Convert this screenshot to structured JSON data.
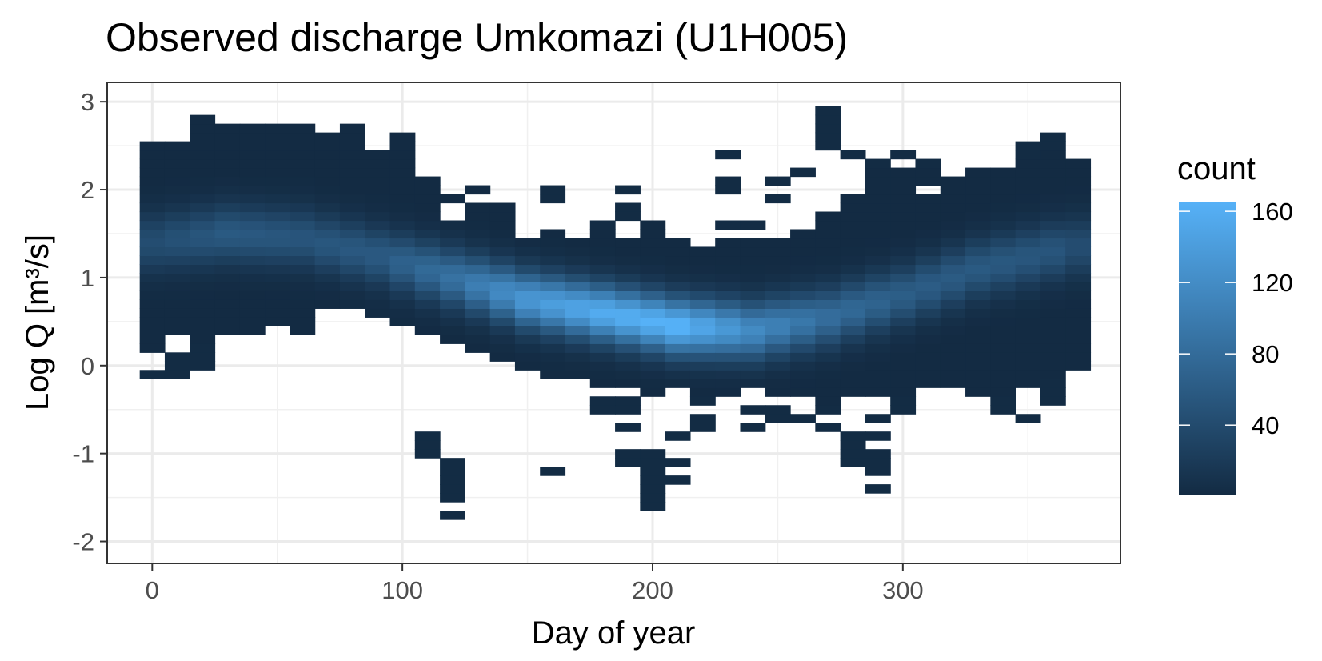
{
  "chart_data": {
    "type": "heatmap",
    "title": "Observed discharge Umkomazi (U1H005)",
    "xlabel": "Day of year",
    "ylabel": "Log Q [m³/s]",
    "xlim": [
      -18,
      387
    ],
    "ylim": [
      -2.25,
      3.22
    ],
    "x_ticks": [
      0,
      100,
      200,
      300
    ],
    "x_tick_labels": [
      "0",
      "100",
      "200",
      "300"
    ],
    "y_ticks": [
      -2,
      -1,
      0,
      1,
      2,
      3
    ],
    "y_tick_labels": [
      "-2",
      "-1",
      "0",
      "1",
      "2",
      "3"
    ],
    "grid": true,
    "bin_width_x": 10,
    "bin_width_y": 0.1,
    "day_min": 0,
    "day_max": 370,
    "fill_aesthetic": "count",
    "legend": {
      "title": "count",
      "position": "right",
      "ticks": [
        40,
        80,
        120,
        160
      ],
      "tick_labels": [
        "40",
        "80",
        "120",
        "160"
      ],
      "range": [
        1,
        165
      ],
      "color_low": "#132B43",
      "color_high": "#56B1F7"
    },
    "ridge": {
      "days": [
        0,
        30,
        60,
        90,
        120,
        150,
        180,
        210,
        240,
        270,
        300,
        330,
        360,
        370
      ],
      "center_log_q": [
        1.4,
        1.5,
        1.45,
        1.25,
        1.0,
        0.75,
        0.6,
        0.45,
        0.4,
        0.55,
        0.8,
        1.1,
        1.3,
        1.35
      ],
      "peak_count": [
        40,
        55,
        50,
        55,
        85,
        130,
        155,
        165,
        115,
        80,
        60,
        55,
        50,
        40
      ]
    },
    "envelope": {
      "days": [
        0,
        10,
        20,
        30,
        40,
        50,
        60,
        70,
        80,
        90,
        100,
        110,
        120,
        130,
        140,
        150,
        160,
        170,
        180,
        190,
        200,
        210,
        220,
        230,
        240,
        250,
        260,
        270,
        280,
        290,
        300,
        310,
        320,
        330,
        340,
        350,
        360,
        370
      ],
      "upper_log_q": [
        2.5,
        2.5,
        2.8,
        2.7,
        2.7,
        2.7,
        2.7,
        2.6,
        2.7,
        2.4,
        2.6,
        2.1,
        1.9,
        2.0,
        1.8,
        1.4,
        1.5,
        1.4,
        1.5,
        1.4,
        1.6,
        1.4,
        1.3,
        1.4,
        1.4,
        1.4,
        1.5,
        1.7,
        1.9,
        2.2,
        2.2,
        2.2,
        2.1,
        2.2,
        2.2,
        2.3,
        2.4,
        2.3
      ],
      "lower_log_q": [
        0.2,
        0.4,
        0.3,
        0.4,
        0.4,
        0.5,
        0.4,
        0.7,
        0.7,
        0.6,
        0.5,
        0.4,
        0.3,
        0.2,
        0.1,
        0.0,
        -0.1,
        -0.1,
        -0.2,
        -0.2,
        -0.3,
        -0.2,
        -0.3,
        -0.3,
        -0.2,
        -0.3,
        -0.3,
        -0.4,
        -0.3,
        -0.3,
        -0.3,
        -0.2,
        -0.2,
        -0.3,
        -0.3,
        -0.2,
        -0.1,
        0.0
      ]
    },
    "extra_bins": [
      {
        "day": 0,
        "log_q": -0.1
      },
      {
        "day": 10,
        "log_q": -0.1
      },
      {
        "day": 10,
        "log_q": 0.0
      },
      {
        "day": 10,
        "log_q": 0.1
      },
      {
        "day": 20,
        "log_q": 0.0
      },
      {
        "day": 20,
        "log_q": 0.1
      },
      {
        "day": 20,
        "log_q": 0.2
      },
      {
        "day": 100,
        "log_q": 2.3
      },
      {
        "day": 100,
        "log_q": 2.4
      },
      {
        "day": 110,
        "log_q": -1.0
      },
      {
        "day": 110,
        "log_q": -0.9
      },
      {
        "day": 110,
        "log_q": -0.8
      },
      {
        "day": 120,
        "log_q": -1.7
      },
      {
        "day": 120,
        "log_q": -1.5
      },
      {
        "day": 120,
        "log_q": -1.4
      },
      {
        "day": 120,
        "log_q": -1.3
      },
      {
        "day": 120,
        "log_q": -1.2
      },
      {
        "day": 120,
        "log_q": -1.1
      },
      {
        "day": 160,
        "log_q": 1.9
      },
      {
        "day": 160,
        "log_q": 2.0
      },
      {
        "day": 160,
        "log_q": 1.5
      },
      {
        "day": 160,
        "log_q": -1.2
      },
      {
        "day": 190,
        "log_q": 2.0
      },
      {
        "day": 190,
        "log_q": 1.8
      },
      {
        "day": 190,
        "log_q": 1.7
      },
      {
        "day": 190,
        "log_q": -0.4
      },
      {
        "day": 190,
        "log_q": -0.5
      },
      {
        "day": 190,
        "log_q": -0.7
      },
      {
        "day": 180,
        "log_q": -0.4
      },
      {
        "day": 180,
        "log_q": -0.5
      },
      {
        "day": 180,
        "log_q": 1.6
      },
      {
        "day": 180,
        "log_q": 1.5
      },
      {
        "day": 190,
        "log_q": -1.0
      },
      {
        "day": 190,
        "log_q": -1.1
      },
      {
        "day": 200,
        "log_q": -1.0
      },
      {
        "day": 200,
        "log_q": -1.1
      },
      {
        "day": 200,
        "log_q": -1.2
      },
      {
        "day": 200,
        "log_q": -1.3
      },
      {
        "day": 200,
        "log_q": -1.4
      },
      {
        "day": 200,
        "log_q": -1.5
      },
      {
        "day": 200,
        "log_q": -1.6
      },
      {
        "day": 210,
        "log_q": -0.8
      },
      {
        "day": 210,
        "log_q": -1.1
      },
      {
        "day": 210,
        "log_q": -1.3
      },
      {
        "day": 220,
        "log_q": -0.4
      },
      {
        "day": 220,
        "log_q": -0.6
      },
      {
        "day": 220,
        "log_q": -0.7
      },
      {
        "day": 230,
        "log_q": 2.0
      },
      {
        "day": 230,
        "log_q": 2.1
      },
      {
        "day": 230,
        "log_q": 2.4
      },
      {
        "day": 230,
        "log_q": 1.6
      },
      {
        "day": 240,
        "log_q": -0.5
      },
      {
        "day": 240,
        "log_q": -0.7
      },
      {
        "day": 240,
        "log_q": 1.6
      },
      {
        "day": 250,
        "log_q": 2.1
      },
      {
        "day": 250,
        "log_q": 1.9
      },
      {
        "day": 250,
        "log_q": -0.5
      },
      {
        "day": 250,
        "log_q": -0.6
      },
      {
        "day": 260,
        "log_q": 2.2
      },
      {
        "day": 260,
        "log_q": -0.6
      },
      {
        "day": 270,
        "log_q": 2.5
      },
      {
        "day": 270,
        "log_q": 2.6
      },
      {
        "day": 270,
        "log_q": 2.7
      },
      {
        "day": 270,
        "log_q": 2.8
      },
      {
        "day": 270,
        "log_q": 2.9
      },
      {
        "day": 270,
        "log_q": -0.5
      },
      {
        "day": 270,
        "log_q": -0.7
      },
      {
        "day": 280,
        "log_q": 2.4
      },
      {
        "day": 280,
        "log_q": -0.8
      },
      {
        "day": 280,
        "log_q": -0.9
      },
      {
        "day": 280,
        "log_q": -1.0
      },
      {
        "day": 280,
        "log_q": -1.1
      },
      {
        "day": 290,
        "log_q": 2.3
      },
      {
        "day": 290,
        "log_q": -0.6
      },
      {
        "day": 290,
        "log_q": -0.8
      },
      {
        "day": 290,
        "log_q": -1.0
      },
      {
        "day": 290,
        "log_q": -1.1
      },
      {
        "day": 290,
        "log_q": -1.2
      },
      {
        "day": 290,
        "log_q": -1.4
      },
      {
        "day": 300,
        "log_q": 2.4
      },
      {
        "day": 300,
        "log_q": -0.4
      },
      {
        "day": 300,
        "log_q": -0.5
      },
      {
        "day": 310,
        "log_q": 2.3
      },
      {
        "day": 340,
        "log_q": -0.4
      },
      {
        "day": 340,
        "log_q": -0.5
      },
      {
        "day": 350,
        "log_q": -0.6
      },
      {
        "day": 350,
        "log_q": 2.5
      },
      {
        "day": 350,
        "log_q": 2.4
      },
      {
        "day": 360,
        "log_q": 2.6
      },
      {
        "day": 360,
        "log_q": 2.5
      },
      {
        "day": 360,
        "log_q": -0.1
      },
      {
        "day": 360,
        "log_q": -0.2
      },
      {
        "day": 360,
        "log_q": -0.3
      },
      {
        "day": 360,
        "log_q": -0.4
      },
      {
        "day": 370,
        "log_q": 2.3
      }
    ],
    "holes": [
      {
        "day": 120,
        "log_q": 1.8
      },
      {
        "day": 120,
        "log_q": 1.7
      },
      {
        "day": 310,
        "log_q": 2.0
      },
      {
        "day": 130,
        "log_q": 1.9
      }
    ]
  }
}
